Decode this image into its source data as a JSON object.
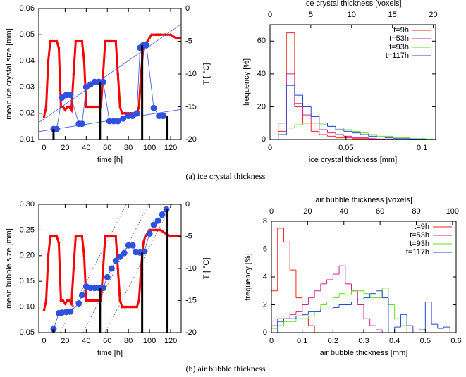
{
  "captions": [
    "(a) ice crystal thickness",
    "(b) air bubble thickness"
  ],
  "chart_data": [
    {
      "type": "line",
      "x_label": "time [h]",
      "y_label": "mean ice crystal size [mm]",
      "y2_label": "T [ °C]",
      "xlim": [
        -5,
        130
      ],
      "xticks": [
        0,
        20,
        40,
        60,
        80,
        100,
        120
      ],
      "ylim": [
        0.01,
        0.06
      ],
      "yticks": [
        0.01,
        0.02,
        0.03,
        0.04,
        0.05,
        0.06
      ],
      "y2lim": [
        -20,
        0
      ],
      "y2ticks": [
        -20,
        -15,
        -10,
        -5,
        0
      ],
      "series": [
        {
          "color": "#ff0000",
          "axis": "y2",
          "style": "thick",
          "x": [
            0,
            2,
            4,
            6,
            8,
            10,
            12,
            14,
            16,
            18,
            20,
            22,
            24,
            26,
            28,
            30,
            32,
            34,
            36,
            38,
            40,
            42,
            44,
            46,
            48,
            50,
            52,
            54,
            56,
            58,
            60,
            62,
            64,
            66,
            68,
            70,
            72,
            74,
            76,
            78,
            80,
            82,
            84,
            86,
            88,
            90,
            92,
            94,
            96,
            98,
            100,
            102,
            104,
            106,
            108,
            110,
            115,
            120,
            125,
            130
          ],
          "values": [
            -16.5,
            -15,
            -8,
            -5,
            -5,
            -5,
            -5,
            -6,
            -15,
            -15,
            -15.5,
            -15,
            -15,
            -15.5,
            -10,
            -5,
            -5,
            -5,
            -5,
            -8,
            -15,
            -15,
            -15,
            -15,
            -15,
            -15,
            -15,
            -15,
            -10,
            -5,
            -5,
            -5,
            -5,
            -5,
            -5,
            -10,
            -15,
            -16,
            -16,
            -16,
            -16,
            -16,
            -16,
            -16,
            -16,
            -15,
            -10,
            -6,
            -5.5,
            -5,
            -4.5,
            -4,
            -4,
            -4,
            -4,
            -4,
            -4,
            -4,
            -4.5,
            -4.5
          ]
        },
        {
          "color": "#4060e0",
          "style": "thin",
          "x": [
            -5,
            130
          ],
          "values": [
            0.0165,
            0.054
          ]
        },
        {
          "color": "#4060e0",
          "style": "thin",
          "x": [
            -5,
            130
          ],
          "values": [
            0.013,
            0.0215
          ]
        },
        {
          "color": "#3050e0",
          "style": "dots",
          "x": [
            9,
            12,
            17,
            21,
            25,
            33,
            36,
            40,
            44,
            48,
            52,
            56,
            62,
            66,
            70,
            75,
            80,
            84,
            88,
            91,
            94,
            97,
            104,
            109,
            113
          ],
          "values": [
            0.014,
            0.014,
            0.026,
            0.027,
            0.027,
            0.016,
            0.016,
            0.03,
            0.031,
            0.032,
            0.032,
            0.032,
            0.017,
            0.017,
            0.017,
            0.018,
            0.019,
            0.019,
            0.02,
            0.045,
            0.046,
            0.046,
            0.022,
            0.019,
            0.019
          ]
        },
        {
          "color": "#000000",
          "style": "bar",
          "x": [
            9,
            53,
            93,
            117
          ],
          "values": [
            0.014,
            0.032,
            0.046,
            0.019
          ]
        }
      ]
    },
    {
      "type": "histogram",
      "title": "ice crystal thickness [voxels]",
      "x_label": "ice crystal thickness [mm]",
      "y_label": "frequency [%]",
      "xlim": [
        0,
        0.109
      ],
      "xticks": [
        0,
        0.05,
        0.1
      ],
      "x2lim": [
        0,
        20.3
      ],
      "x2ticks": [
        0,
        5,
        10,
        15,
        20
      ],
      "ylim": [
        0,
        70
      ],
      "yticks": [
        0,
        20,
        40,
        60
      ],
      "legend": "upper right",
      "bins": [
        0.0054,
        0.0108,
        0.0162,
        0.0216,
        0.027,
        0.0324,
        0.0378,
        0.0432,
        0.0486,
        0.054,
        0.0594,
        0.0648,
        0.0702,
        0.0756,
        0.081,
        0.0864,
        0.0918,
        0.0972,
        0.1026,
        0.108
      ],
      "series": [
        {
          "name": "t=9h",
          "color": "#ff2020",
          "values": [
            5,
            65,
            20,
            10,
            5,
            3,
            2,
            1,
            1,
            0.5,
            0.5,
            0.3,
            0.2,
            0,
            0,
            0,
            0,
            0,
            0
          ]
        },
        {
          "name": "t=53h",
          "color": "#d02090",
          "values": [
            10,
            40,
            22,
            15,
            10,
            6,
            4,
            3,
            2,
            1,
            1,
            0.5,
            0.3,
            0.2,
            0,
            0,
            0,
            0,
            0
          ]
        },
        {
          "name": "t=93h",
          "color": "#60dd20",
          "values": [
            3,
            7,
            9,
            10,
            10,
            9,
            8,
            7,
            6,
            5,
            4,
            3,
            2,
            2,
            1,
            1,
            0.5,
            0.5,
            0.3
          ]
        },
        {
          "name": "t=117h",
          "color": "#2244dd",
          "values": [
            3,
            33,
            27,
            20,
            14,
            10,
            8,
            6,
            5,
            4,
            3,
            2,
            1.5,
            1,
            0.5,
            0.5,
            0.3,
            0.2,
            0
          ]
        }
      ]
    },
    {
      "type": "line",
      "x_label": "time [h]",
      "y_label": "mean bubble size [mm]",
      "y2_label": "T [ °C]",
      "xlim": [
        -5,
        130
      ],
      "xticks": [
        0,
        20,
        40,
        60,
        80,
        100,
        120
      ],
      "ylim": [
        0.05,
        0.3
      ],
      "yticks": [
        0.05,
        {
          "value": 0.1,
          "label": "0.10"
        },
        0.15,
        {
          "value": 0.2,
          "label": "0.20"
        },
        0.25,
        {
          "value": 0.3,
          "label": "0.30"
        }
      ],
      "y2lim": [
        -20,
        0
      ],
      "y2ticks": [
        -20,
        -15,
        -10,
        -5,
        0
      ],
      "series": [
        {
          "color": "#555555",
          "style": "dotted",
          "x": [
            15,
            78
          ],
          "values": [
            0.05,
            0.3
          ]
        },
        {
          "color": "#555555",
          "style": "dotted",
          "x": [
            37,
            99
          ],
          "values": [
            0.05,
            0.3
          ]
        },
        {
          "color": "#555555",
          "style": "dotted",
          "x": [
            58,
            121
          ],
          "values": [
            0.05,
            0.3
          ]
        },
        {
          "color": "#ff0000",
          "axis": "y2",
          "style": "thick",
          "x": [
            0,
            2,
            4,
            6,
            8,
            10,
            12,
            14,
            16,
            18,
            20,
            22,
            24,
            26,
            28,
            30,
            32,
            34,
            36,
            38,
            40,
            42,
            44,
            46,
            48,
            50,
            52,
            54,
            56,
            58,
            60,
            62,
            64,
            66,
            68,
            70,
            72,
            74,
            76,
            78,
            80,
            82,
            84,
            86,
            88,
            90,
            92,
            94,
            96,
            98,
            100,
            102,
            104,
            106,
            108,
            110,
            115,
            120,
            125,
            130
          ],
          "values": [
            -16.5,
            -15,
            -8,
            -5,
            -5,
            -5,
            -5,
            -6,
            -15,
            -15,
            -15.5,
            -15,
            -15,
            -15.5,
            -10,
            -5,
            -5,
            -5,
            -5,
            -8,
            -15,
            -15,
            -15,
            -15,
            -15,
            -15,
            -15,
            -15,
            -10,
            -5,
            -5,
            -5,
            -5,
            -5,
            -5,
            -10,
            -15,
            -16,
            -16,
            -16,
            -16,
            -16,
            -16,
            -16,
            -16,
            -15,
            -10,
            -6,
            -5,
            -4.5,
            -4,
            -4,
            -4,
            -4,
            -4,
            -4,
            -4.5,
            -5,
            -5,
            -5
          ]
        },
        {
          "color": "#3050e0",
          "style": "dots",
          "x": [
            9,
            14,
            17,
            21,
            25,
            33,
            36,
            40,
            44,
            48,
            52,
            56,
            60,
            64,
            68,
            72,
            76,
            80,
            84,
            87,
            91,
            95,
            100,
            104,
            108,
            112,
            116
          ],
          "values": [
            0.057,
            0.088,
            0.089,
            0.09,
            0.091,
            0.107,
            0.123,
            0.14,
            0.137,
            0.137,
            0.137,
            0.137,
            0.158,
            0.175,
            0.19,
            0.198,
            0.205,
            0.22,
            0.22,
            0.207,
            0.206,
            0.208,
            0.243,
            0.26,
            0.268,
            0.28,
            0.29
          ]
        },
        {
          "color": "#000000",
          "style": "bar",
          "x": [
            9,
            53,
            93,
            117
          ],
          "values": [
            0.057,
            0.137,
            0.206,
            0.29
          ]
        }
      ]
    },
    {
      "type": "histogram",
      "title": "air bubble thickness [voxels]",
      "x_label": "air bubble thickness [mm]",
      "y_label": "frequency [%]",
      "xlim": [
        0,
        0.6
      ],
      "xticks": [
        0,
        0.1,
        0.2,
        0.3,
        0.4,
        0.5,
        0.6
      ],
      "x2lim": [
        0,
        102
      ],
      "x2ticks": [
        0,
        20,
        40,
        60,
        80,
        100
      ],
      "ylim": [
        0,
        8
      ],
      "yticks": [
        0,
        2,
        4,
        6,
        8
      ],
      "legend": "upper right",
      "bins": [
        0,
        0.02,
        0.04,
        0.06,
        0.08,
        0.1,
        0.12,
        0.14,
        0.16,
        0.18,
        0.2,
        0.22,
        0.24,
        0.26,
        0.28,
        0.3,
        0.32,
        0.34,
        0.36,
        0.38,
        0.4,
        0.42,
        0.44,
        0.46,
        0.48,
        0.5,
        0.52,
        0.54,
        0.56,
        0.58,
        0.6
      ],
      "series": [
        {
          "name": "t=9h",
          "color": "#ff2020",
          "values": [
            3,
            7.5,
            6.5,
            4.5,
            2.5,
            1.2,
            0.5,
            0,
            0,
            0,
            0,
            0,
            0,
            0,
            0,
            0,
            0,
            0,
            0,
            0,
            0,
            0,
            0,
            0,
            0,
            0,
            0,
            0,
            0,
            0
          ]
        },
        {
          "name": "t=53h",
          "color": "#d02090",
          "values": [
            0.5,
            1,
            1,
            1.3,
            1.5,
            2,
            2.5,
            3,
            3.5,
            3.8,
            4.2,
            4.8,
            3.5,
            3,
            2,
            1,
            0.5,
            0.2,
            0,
            0,
            0,
            0,
            0,
            0,
            0,
            0,
            0,
            0,
            0,
            0
          ]
        },
        {
          "name": "t=93h",
          "color": "#60dd20",
          "values": [
            0.3,
            0.5,
            0.8,
            0.8,
            1,
            1,
            1.2,
            1.5,
            2,
            2.2,
            2.5,
            2.8,
            2.7,
            3,
            3,
            2.8,
            2.5,
            2.5,
            3.2,
            2,
            1,
            0.5,
            0,
            0,
            0,
            0,
            0,
            0,
            0,
            0
          ]
        },
        {
          "name": "t=117h",
          "color": "#2244dd",
          "values": [
            0,
            0.8,
            1,
            1,
            1.2,
            1.3,
            1.5,
            1.5,
            1.7,
            1.7,
            1.8,
            2,
            2,
            2.2,
            2.4,
            2.5,
            2.8,
            3,
            2.5,
            0,
            0.4,
            1.3,
            0.5,
            0,
            0.2,
            2.2,
            0.6,
            0.3,
            0.4,
            0
          ]
        }
      ]
    }
  ]
}
